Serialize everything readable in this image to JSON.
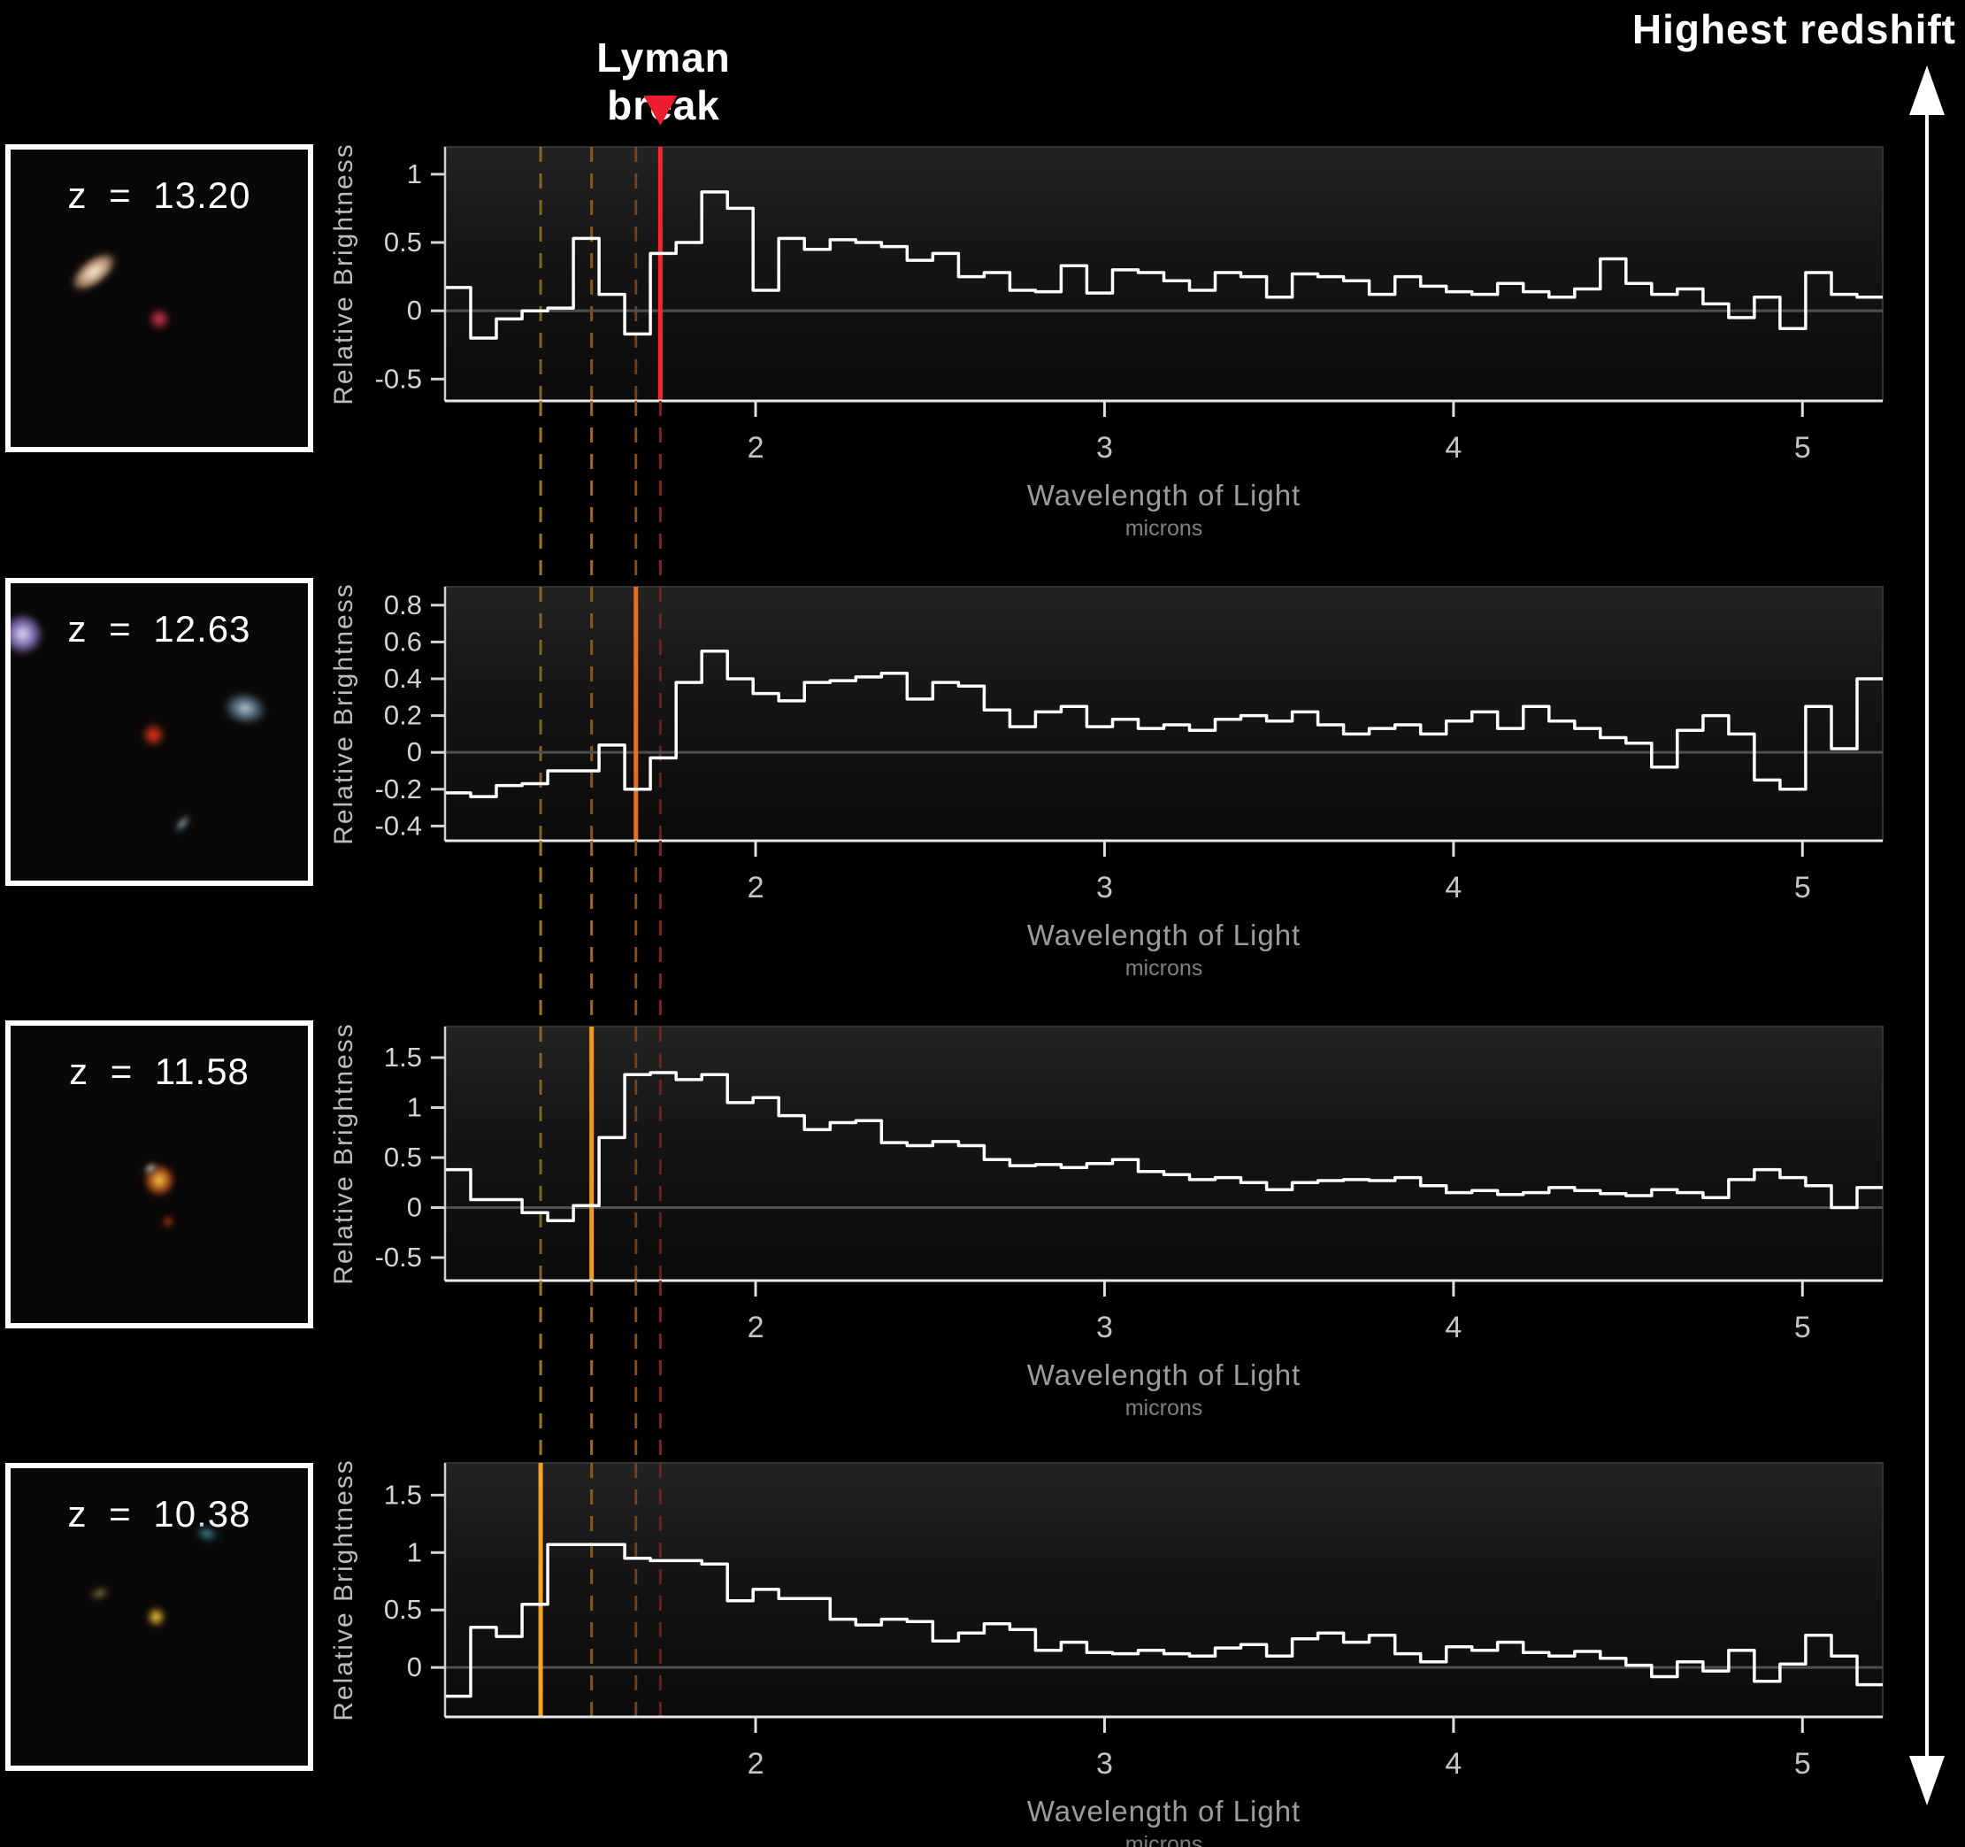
{
  "figure": {
    "annotations": {
      "lyman_break_label": "Lyman break",
      "highest_redshift_label": "Highest redshift",
      "marker_color": "#ed1c2e",
      "arrow_color": "#ffffff"
    },
    "axes_shared": {
      "xlabel": "Wavelength of Light",
      "x_sublabel": "microns",
      "ylabel": "Relative Brightness",
      "x_ticks": [
        2,
        3,
        4,
        5
      ],
      "x_range": [
        1.11,
        5.23
      ]
    },
    "break_markers": [
      {
        "z": 13.2,
        "wavelength_microns": 1.727,
        "solid_color": "#ee2b31",
        "dash_color": "#7c2424"
      },
      {
        "z": 12.63,
        "wavelength_microns": 1.657,
        "solid_color": "#ea6c1f",
        "dash_color": "#8c4a14"
      },
      {
        "z": 11.58,
        "wavelength_microns": 1.53,
        "solid_color": "#f29a1c",
        "dash_color": "#a06a16"
      },
      {
        "z": 10.38,
        "wavelength_microns": 1.384,
        "solid_color": "#f2a520",
        "dash_color": "#9c7a1e"
      }
    ]
  },
  "chart_data": [
    {
      "type": "line",
      "style": "step-histogram",
      "galaxy_label": "z = 13.20",
      "redshift": 13.2,
      "xlabel": "Wavelength of Light",
      "x_sublabel": "microns",
      "ylabel": "Relative Brightness",
      "x_range": [
        1.11,
        5.23
      ],
      "x_ticks": [
        2,
        3,
        4,
        5
      ],
      "y_ticks": [
        1,
        0.5,
        0,
        -0.5
      ],
      "y_range": [
        -0.66,
        1.2
      ],
      "grid": false,
      "legend": false,
      "lyman_break_micron": 1.727,
      "break_line_color": "#ee2b31",
      "bin_start": 1.11,
      "bin_width": 0.073571,
      "values": [
        0.17,
        -0.2,
        -0.06,
        0.0,
        0.02,
        0.53,
        0.12,
        -0.17,
        0.42,
        0.5,
        0.87,
        0.75,
        0.15,
        0.53,
        0.45,
        0.52,
        0.5,
        0.47,
        0.37,
        0.42,
        0.25,
        0.28,
        0.15,
        0.14,
        0.33,
        0.13,
        0.3,
        0.28,
        0.22,
        0.15,
        0.28,
        0.25,
        0.1,
        0.27,
        0.25,
        0.22,
        0.12,
        0.25,
        0.18,
        0.14,
        0.12,
        0.2,
        0.14,
        0.1,
        0.16,
        0.38,
        0.2,
        0.12,
        0.16,
        0.05,
        -0.05,
        0.1,
        -0.13,
        0.28,
        0.12,
        0.1
      ],
      "cutout_objects": [
        {
          "name": "galaxy-elongated-white",
          "x_pct": 28,
          "y_pct": 41,
          "w_pct": 18,
          "h_pct": 9,
          "rotate_deg": -38,
          "core": "#fff3e4",
          "halo": "#b08a6a"
        },
        {
          "name": "red-dot",
          "x_pct": 50,
          "y_pct": 57,
          "w_pct": 8,
          "h_pct": 8,
          "rotate_deg": 0,
          "core": "#e0475c",
          "halo": "#5a1420"
        }
      ]
    },
    {
      "type": "line",
      "style": "step-histogram",
      "galaxy_label": "z = 12.63",
      "redshift": 12.63,
      "xlabel": "Wavelength of Light",
      "x_sublabel": "microns",
      "ylabel": "Relative Brightness",
      "x_range": [
        1.11,
        5.23
      ],
      "x_ticks": [
        2,
        3,
        4,
        5
      ],
      "y_ticks": [
        0.8,
        0.6,
        0.4,
        0.2,
        0,
        -0.2,
        -0.4
      ],
      "y_range": [
        -0.48,
        0.9
      ],
      "grid": false,
      "legend": false,
      "lyman_break_micron": 1.657,
      "break_line_color": "#ea6c1f",
      "bin_start": 1.11,
      "bin_width": 0.073571,
      "values": [
        -0.22,
        -0.24,
        -0.18,
        -0.17,
        -0.1,
        -0.1,
        0.04,
        -0.2,
        -0.03,
        0.38,
        0.55,
        0.4,
        0.32,
        0.28,
        0.38,
        0.39,
        0.41,
        0.43,
        0.29,
        0.38,
        0.36,
        0.23,
        0.14,
        0.22,
        0.25,
        0.14,
        0.18,
        0.13,
        0.15,
        0.12,
        0.18,
        0.2,
        0.17,
        0.22,
        0.15,
        0.1,
        0.13,
        0.15,
        0.1,
        0.17,
        0.22,
        0.13,
        0.25,
        0.17,
        0.13,
        0.08,
        0.05,
        -0.08,
        0.12,
        0.2,
        0.1,
        -0.15,
        -0.2,
        0.25,
        0.02,
        0.4
      ],
      "cutout_objects": [
        {
          "name": "corner-star-white-purple",
          "x_pct": 4,
          "y_pct": 17,
          "w_pct": 14,
          "h_pct": 14,
          "rotate_deg": 0,
          "core": "#e6dcff",
          "halo": "#6a5a98"
        },
        {
          "name": "red-dot",
          "x_pct": 48,
          "y_pct": 51,
          "w_pct": 8,
          "h_pct": 8,
          "rotate_deg": 0,
          "core": "#ff2e12",
          "halo": "#6a2010"
        },
        {
          "name": "faint-galaxy-right",
          "x_pct": 79,
          "y_pct": 42,
          "w_pct": 15,
          "h_pct": 11,
          "rotate_deg": 10,
          "core": "#b9c9d9",
          "halo": "#3a4a58"
        },
        {
          "name": "faint-smudge-bottom",
          "x_pct": 58,
          "y_pct": 81,
          "w_pct": 8,
          "h_pct": 4,
          "rotate_deg": -52,
          "core": "#9fb3bd",
          "halo": "#2a3438"
        }
      ]
    },
    {
      "type": "line",
      "style": "step-histogram",
      "galaxy_label": "z = 11.58",
      "redshift": 11.58,
      "xlabel": "Wavelength of Light",
      "x_sublabel": "microns",
      "ylabel": "Relative Brightness",
      "x_range": [
        1.11,
        5.23
      ],
      "x_ticks": [
        2,
        3,
        4,
        5
      ],
      "y_ticks": [
        1.5,
        1,
        0.5,
        0,
        -0.5
      ],
      "y_range": [
        -0.73,
        1.81
      ],
      "grid": false,
      "legend": false,
      "lyman_break_micron": 1.53,
      "break_line_color": "#f29a1c",
      "bin_start": 1.11,
      "bin_width": 0.073571,
      "values": [
        0.38,
        0.08,
        0.08,
        -0.05,
        -0.13,
        0.02,
        0.7,
        1.33,
        1.35,
        1.28,
        1.33,
        1.05,
        1.1,
        0.92,
        0.78,
        0.85,
        0.87,
        0.65,
        0.62,
        0.66,
        0.62,
        0.48,
        0.42,
        0.43,
        0.4,
        0.44,
        0.48,
        0.36,
        0.33,
        0.28,
        0.3,
        0.25,
        0.18,
        0.25,
        0.27,
        0.28,
        0.27,
        0.3,
        0.22,
        0.15,
        0.17,
        0.13,
        0.15,
        0.2,
        0.17,
        0.14,
        0.12,
        0.18,
        0.15,
        0.1,
        0.28,
        0.38,
        0.3,
        0.22,
        0.0,
        0.2
      ],
      "cutout_objects": [
        {
          "name": "orange-galaxy-core",
          "x_pct": 50,
          "y_pct": 52,
          "w_pct": 11,
          "h_pct": 11,
          "rotate_deg": 0,
          "core": "#ffd24a",
          "halo": "#9a4418"
        },
        {
          "name": "white-edge-glint",
          "x_pct": 47,
          "y_pct": 48,
          "w_pct": 5,
          "h_pct": 4,
          "rotate_deg": -30,
          "core": "#e8e0d0",
          "halo": "#5a5040"
        },
        {
          "name": "faint-red-dot-below",
          "x_pct": 53,
          "y_pct": 66,
          "w_pct": 5,
          "h_pct": 5,
          "rotate_deg": 0,
          "core": "#c2401a",
          "halo": "#401208"
        }
      ]
    },
    {
      "type": "line",
      "style": "step-histogram",
      "galaxy_label": "z = 10.38",
      "redshift": 10.38,
      "xlabel": "Wavelength of Light",
      "x_sublabel": "microns",
      "ylabel": "Relative Brightness",
      "x_range": [
        1.11,
        5.23
      ],
      "x_ticks": [
        2,
        3,
        4,
        5
      ],
      "y_ticks": [
        1.5,
        1,
        0.5,
        0
      ],
      "y_range": [
        -0.43,
        1.78
      ],
      "grid": false,
      "legend": false,
      "lyman_break_micron": 1.384,
      "break_line_color": "#f2a520",
      "bin_start": 1.11,
      "bin_width": 0.073571,
      "values": [
        -0.25,
        0.35,
        0.27,
        0.55,
        1.07,
        1.07,
        1.07,
        0.95,
        0.93,
        0.93,
        0.9,
        0.58,
        0.68,
        0.6,
        0.6,
        0.42,
        0.37,
        0.42,
        0.4,
        0.23,
        0.3,
        0.38,
        0.33,
        0.15,
        0.22,
        0.13,
        0.12,
        0.15,
        0.12,
        0.1,
        0.17,
        0.2,
        0.1,
        0.25,
        0.3,
        0.22,
        0.28,
        0.12,
        0.05,
        0.18,
        0.15,
        0.22,
        0.13,
        0.1,
        0.14,
        0.08,
        0.02,
        -0.08,
        0.05,
        -0.03,
        0.15,
        -0.12,
        0.03,
        0.28,
        0.1,
        -0.15
      ],
      "cutout_objects": [
        {
          "name": "yellow-dot-galaxy",
          "x_pct": 49,
          "y_pct": 50,
          "w_pct": 7,
          "h_pct": 7,
          "rotate_deg": 0,
          "core": "#ffe14a",
          "halo": "#6a4e14"
        },
        {
          "name": "faint-cyan-smudge",
          "x_pct": 66,
          "y_pct": 22,
          "w_pct": 9,
          "h_pct": 6,
          "rotate_deg": 15,
          "core": "#4a8a9a",
          "halo": "#12272c"
        },
        {
          "name": "faint-yellow-smudge",
          "x_pct": 30,
          "y_pct": 42,
          "w_pct": 8,
          "h_pct": 5,
          "rotate_deg": -20,
          "core": "#8a7a4a",
          "halo": "#262012"
        }
      ]
    }
  ]
}
